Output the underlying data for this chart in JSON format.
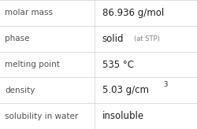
{
  "rows": [
    {
      "label": "molar mass",
      "value": "86.936 g/mol",
      "type": "simple"
    },
    {
      "label": "phase",
      "value": null,
      "type": "phase",
      "main": "solid",
      "sub": "(at STP)"
    },
    {
      "label": "melting point",
      "value": "535 °C",
      "type": "simple"
    },
    {
      "label": "density",
      "value": null,
      "type": "super",
      "main": "5.03 g/cm",
      "sup": "3"
    },
    {
      "label": "solubility in water",
      "value": "insoluble",
      "type": "simple"
    }
  ],
  "col_split": 0.478,
  "bg_color": "#ffffff",
  "line_color": "#d0d0d0",
  "label_color": "#505050",
  "value_color": "#202020",
  "sub_color": "#808080",
  "label_fontsize": 7.5,
  "value_fontsize": 8.5,
  "sub_fontsize": 6.0,
  "sup_fontsize": 6.0
}
